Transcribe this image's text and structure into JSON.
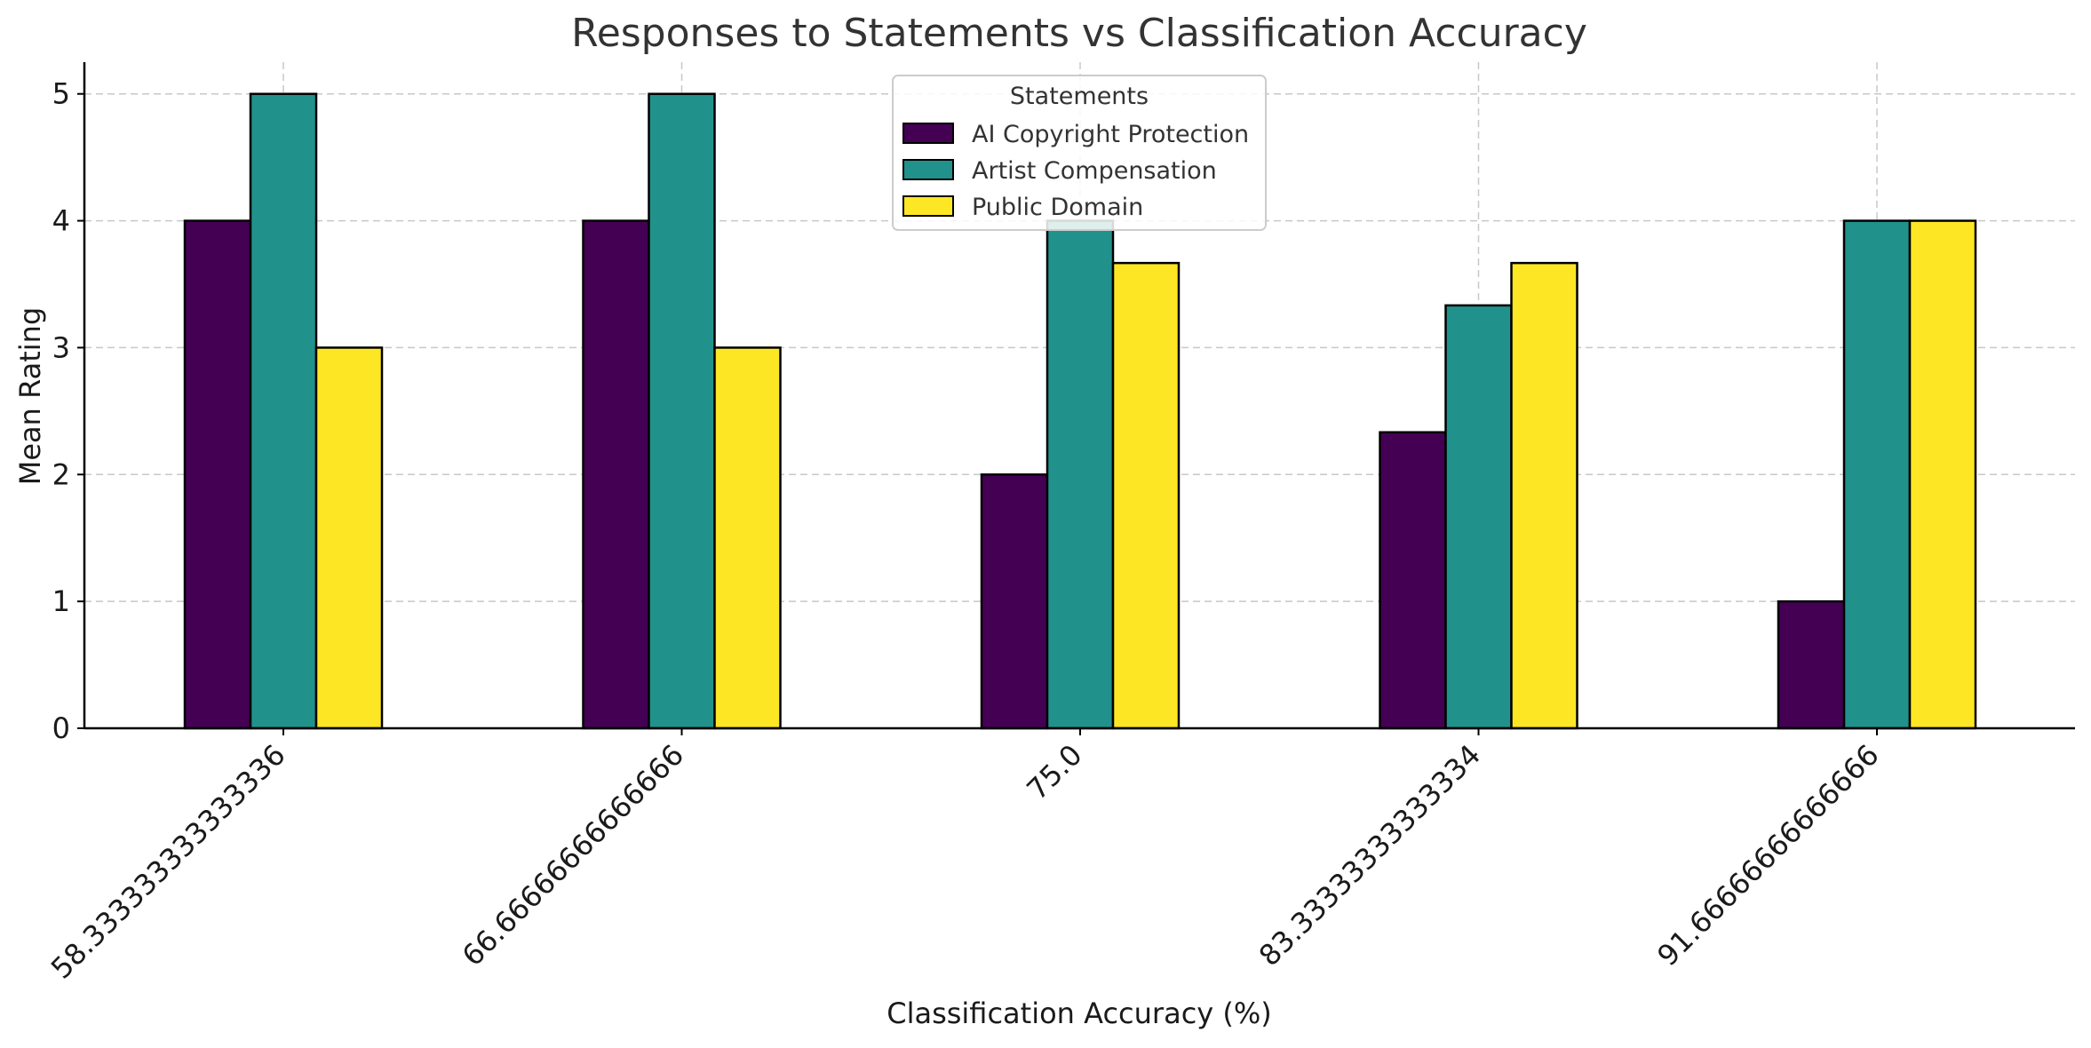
{
  "chart_data": {
    "type": "bar",
    "title": "Responses to Statements vs Classification Accuracy",
    "xlabel": "Classification Accuracy (%)",
    "ylabel": "Mean Rating",
    "categories": [
      "58.333333333333336",
      "66.66666666666666",
      "75.0",
      "83.33333333333334",
      "91.66666666666666"
    ],
    "series": [
      {
        "name": "AI Copyright Protection",
        "color": "#440154",
        "values": [
          4.0,
          4.0,
          2.0,
          2.333,
          1.0
        ]
      },
      {
        "name": "Artist Compensation",
        "color": "#21918c",
        "values": [
          5.0,
          5.0,
          4.0,
          3.333,
          4.0
        ]
      },
      {
        "name": "Public Domain",
        "color": "#fde725",
        "values": [
          3.0,
          3.0,
          3.667,
          3.667,
          4.0
        ]
      }
    ],
    "ylim": [
      0,
      5.25
    ],
    "yticks": [
      0,
      1,
      2,
      3,
      4,
      5
    ],
    "grid": true,
    "legend": {
      "title": "Statements",
      "placement": "top-center"
    }
  }
}
